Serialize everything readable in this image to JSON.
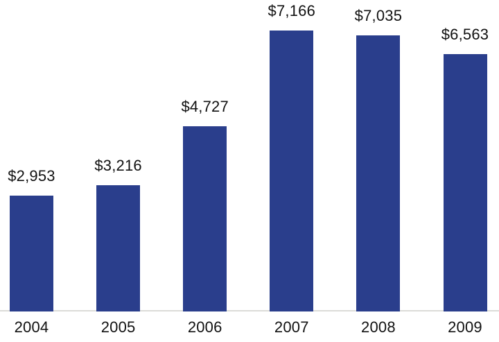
{
  "chart_data": {
    "type": "bar",
    "title": "",
    "xlabel": "",
    "ylabel": "",
    "categories": [
      "2004",
      "2005",
      "2006",
      "2007",
      "2008",
      "2009"
    ],
    "values": [
      2953,
      3216,
      4727,
      7166,
      7035,
      6563
    ],
    "value_labels": [
      "$2,953",
      "$3,216",
      "$4,727",
      "$7,166",
      "$7,035",
      "$6,563"
    ],
    "ylim": [
      0,
      7925
    ],
    "grid": false,
    "legend": false,
    "bar_color": "#2a3e8c",
    "axis_line_color": "#dcdcd8",
    "text_color": "#111111",
    "background_color": "#ffffff"
  }
}
